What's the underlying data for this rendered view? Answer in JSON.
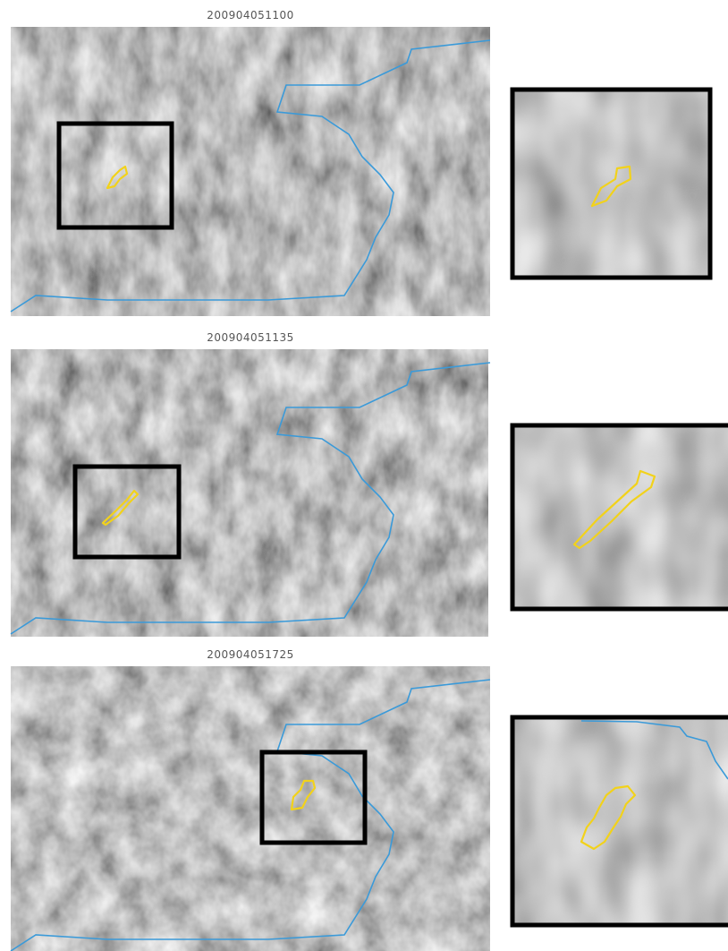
{
  "panels": [
    {
      "timestamp": "200904051100"
    },
    {
      "timestamp": "200904051135"
    },
    {
      "timestamp": "200904051725"
    }
  ]
}
